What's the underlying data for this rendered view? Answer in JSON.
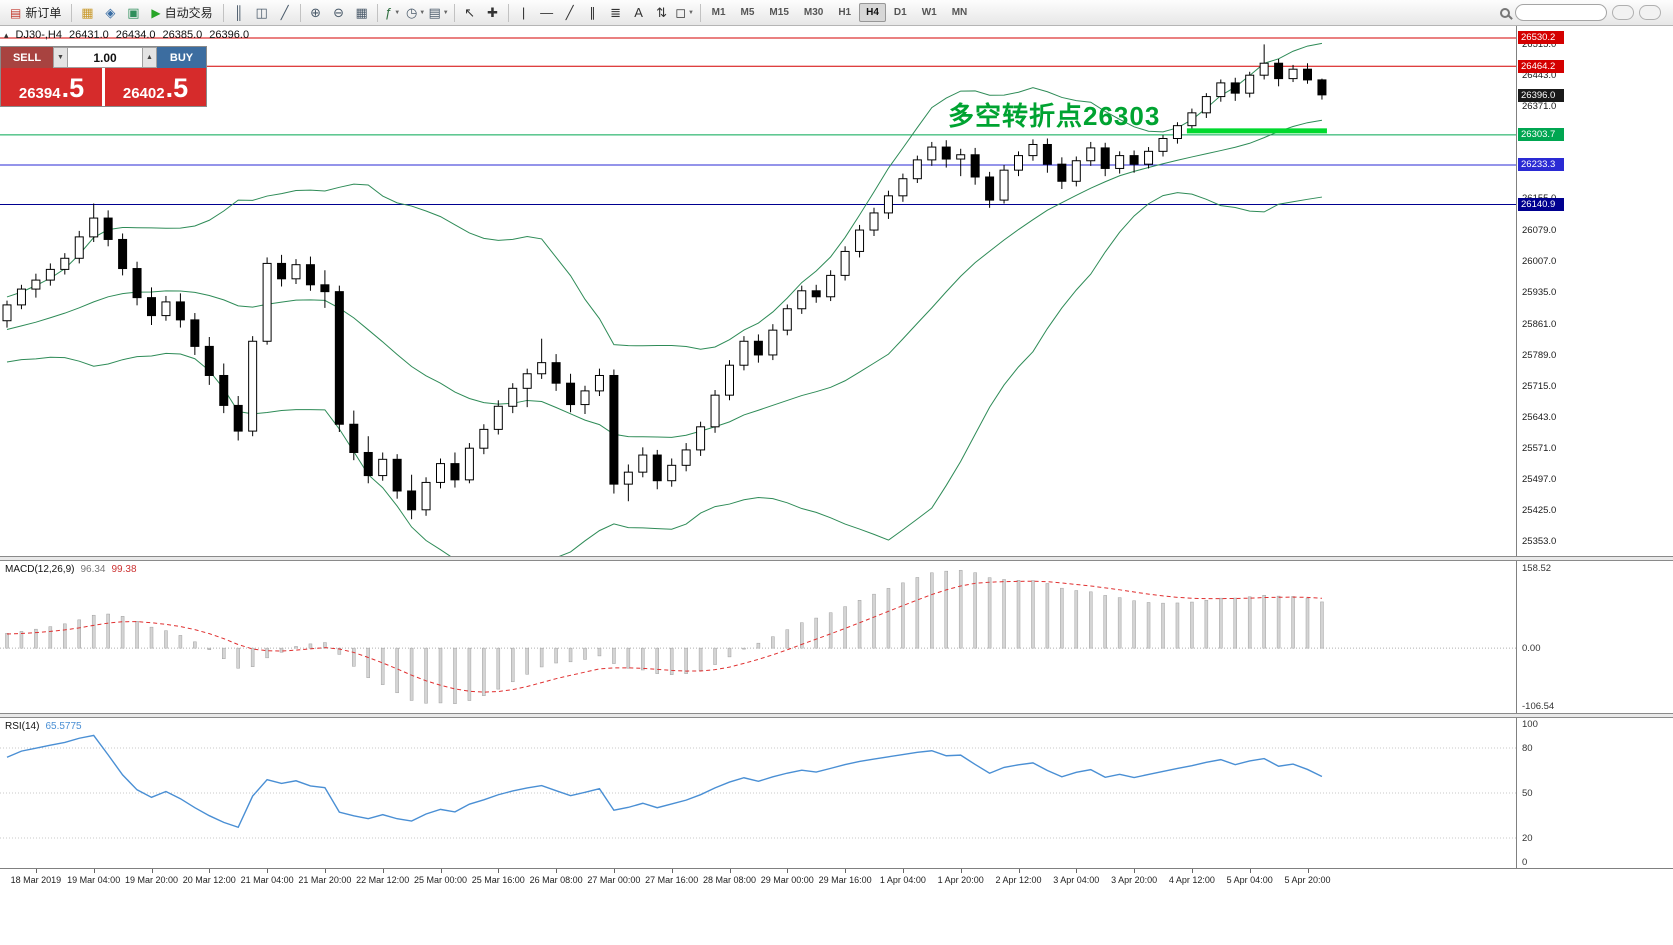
{
  "toolbar": {
    "items": [
      {
        "type": "button",
        "name": "new-order-button",
        "glyph": "▤",
        "glyph_color": "#c33a2f",
        "label": "新订单"
      },
      {
        "type": "sep"
      },
      {
        "type": "icon",
        "name": "market-watch-icon",
        "glyph": "▦",
        "glyph_color": "#c9992a"
      },
      {
        "type": "icon",
        "name": "navigator-icon",
        "glyph": "◈",
        "glyph_color": "#3a6ea5"
      },
      {
        "type": "icon",
        "name": "terminal-icon",
        "glyph": "▣",
        "glyph_color": "#2f8f5b"
      },
      {
        "type": "button",
        "name": "autotrading-button",
        "glyph": "▶",
        "glyph_color": "#27a527",
        "label": "自动交易"
      },
      {
        "type": "sep"
      },
      {
        "type": "icon",
        "name": "bar-chart-icon",
        "glyph": "║",
        "glyph_color": "#4a5a6a"
      },
      {
        "type": "icon",
        "name": "candlestick-chart-icon",
        "glyph": "◫",
        "glyph_color": "#4a5a6a"
      },
      {
        "type": "icon",
        "name": "line-chart-icon",
        "glyph": "╱",
        "glyph_color": "#4a5a6a"
      },
      {
        "type": "sep"
      },
      {
        "type": "icon",
        "name": "zoom-in-icon",
        "glyph": "⊕",
        "glyph_color": "#4a5a6a"
      },
      {
        "type": "icon",
        "name": "zoom-out-icon",
        "glyph": "⊖",
        "glyph_color": "#4a5a6a"
      },
      {
        "type": "icon",
        "name": "grid-icon",
        "glyph": "▦",
        "glyph_color": "#4a5a6a"
      },
      {
        "type": "sep"
      },
      {
        "type": "dropdown",
        "name": "indicators-button",
        "glyph": "ƒ",
        "glyph_color": "#2f6e3f"
      },
      {
        "type": "dropdown",
        "name": "periods-button",
        "glyph": "◷",
        "glyph_color": "#4a5a6a"
      },
      {
        "type": "dropdown",
        "name": "templates-button",
        "glyph": "▤",
        "glyph_color": "#4a5a6a"
      },
      {
        "type": "sep"
      },
      {
        "type": "icon",
        "name": "cursor-icon",
        "glyph": "↖",
        "glyph_color": "#333333"
      },
      {
        "type": "icon",
        "name": "crosshair-icon",
        "glyph": "✚",
        "glyph_color": "#333333"
      },
      {
        "type": "sep"
      },
      {
        "type": "icon",
        "name": "vertical-line-icon",
        "glyph": "|",
        "glyph_color": "#333333"
      },
      {
        "type": "icon",
        "name": "horizontal-line-icon",
        "glyph": "―",
        "glyph_color": "#333333"
      },
      {
        "type": "icon",
        "name": "trendline-icon",
        "glyph": "╱",
        "glyph_color": "#333333"
      },
      {
        "type": "icon",
        "name": "channel-icon",
        "glyph": "∥",
        "glyph_color": "#333333"
      },
      {
        "type": "icon",
        "name": "fibonacci-icon",
        "glyph": "≣",
        "glyph_color": "#333333"
      },
      {
        "type": "icon",
        "name": "text-icon",
        "glyph": "A",
        "glyph_color": "#333333"
      },
      {
        "type": "icon",
        "name": "arrows-icon",
        "glyph": "⇅",
        "glyph_color": "#333333"
      },
      {
        "type": "dropdown",
        "name": "shapes-button",
        "glyph": "◻",
        "glyph_color": "#333333"
      },
      {
        "type": "sep"
      }
    ],
    "dropdown_arrow_glyph": "▼",
    "timeframes": [
      "M1",
      "M5",
      "M15",
      "M30",
      "H1",
      "H4",
      "D1",
      "W1",
      "MN"
    ],
    "active_timeframe": "H4"
  },
  "chart": {
    "symbol_header": {
      "collapse_glyph": "▴",
      "symbol": "DJ30-,H4",
      "open": "26431.0",
      "high": "26434.0",
      "low": "26385.0",
      "close": "26396.0"
    },
    "trade_panel": {
      "sell_label": "SELL",
      "buy_label": "BUY",
      "volume": "1.00",
      "volume_down_glyph": "▼",
      "volume_up_glyph": "▲",
      "sell_price_main": "26394",
      "sell_price_frac": ".5",
      "buy_price_main": "26402",
      "buy_price_frac": ".5"
    },
    "annotation": {
      "text": "多空转折点26303",
      "color": "#00a331"
    },
    "levels": [
      {
        "label": "26530.2",
        "price": 26530.2,
        "color": "#d40000"
      },
      {
        "label": "26464.2",
        "price": 26464.2,
        "color": "#d40000"
      },
      {
        "label": "26303.7",
        "price": 26303.7,
        "color": "#00a651"
      },
      {
        "label": "26233.3",
        "price": 26233.3,
        "color": "#2a2ad4"
      },
      {
        "label": "26140.9",
        "price": 26140.9,
        "color": "#000090"
      }
    ],
    "current_price_marker": {
      "label": "26396.0",
      "price": 26396.0,
      "color": "#1a1a1a"
    },
    "support_zone": {
      "price": 26303.7,
      "from_index": 82,
      "to_index": 91,
      "color": "#00d92e"
    },
    "price_ticks": [
      "26515.0",
      "26443.0",
      "26371.0",
      "26299.0",
      "26227.0",
      "26155.0",
      "26079.0",
      "26007.0",
      "25935.0",
      "25861.0",
      "25789.0",
      "25715.0",
      "25643.0",
      "25571.0",
      "25497.0",
      "25425.0",
      "25353.0"
    ]
  },
  "chart_data": {
    "type": "candlestick",
    "symbol": "DJ30-",
    "timeframe": "H4",
    "price_range": {
      "max": 26557,
      "min": 25318
    },
    "warmup_closes": [
      25760,
      25775,
      25790,
      25780,
      25800,
      25815,
      25830,
      25820,
      25840,
      25855,
      25870,
      25860,
      25880,
      25870,
      25885,
      25875,
      25890,
      25880,
      25870,
      25862
    ],
    "ohlc": [
      [
        25868,
        25915,
        25852,
        25905
      ],
      [
        25905,
        25952,
        25895,
        25942
      ],
      [
        25942,
        25978,
        25922,
        25963
      ],
      [
        25963,
        26002,
        25950,
        25988
      ],
      [
        25988,
        26026,
        25976,
        26014
      ],
      [
        26014,
        26078,
        26002,
        26064
      ],
      [
        26064,
        26142,
        26052,
        26108
      ],
      [
        26108,
        26126,
        26042,
        26058
      ],
      [
        26058,
        26072,
        25974,
        25990
      ],
      [
        25990,
        26006,
        25904,
        25922
      ],
      [
        25922,
        25946,
        25858,
        25880
      ],
      [
        25880,
        25926,
        25868,
        25912
      ],
      [
        25912,
        25932,
        25852,
        25870
      ],
      [
        25870,
        25886,
        25788,
        25808
      ],
      [
        25808,
        25830,
        25718,
        25740
      ],
      [
        25740,
        25768,
        25652,
        25670
      ],
      [
        25670,
        25692,
        25588,
        25610
      ],
      [
        25610,
        25832,
        25598,
        25820
      ],
      [
        25820,
        26016,
        25812,
        26002
      ],
      [
        26002,
        26022,
        25948,
        25966
      ],
      [
        25966,
        26012,
        25954,
        25999
      ],
      [
        25999,
        26018,
        25938,
        25952
      ],
      [
        25952,
        25986,
        25898,
        25936
      ],
      [
        25936,
        25950,
        25608,
        25626
      ],
      [
        25626,
        25658,
        25542,
        25560
      ],
      [
        25560,
        25598,
        25488,
        25506
      ],
      [
        25506,
        25560,
        25494,
        25544
      ],
      [
        25544,
        25556,
        25452,
        25470
      ],
      [
        25470,
        25508,
        25404,
        25426
      ],
      [
        25426,
        25502,
        25412,
        25490
      ],
      [
        25490,
        25546,
        25476,
        25534
      ],
      [
        25534,
        25560,
        25478,
        25496
      ],
      [
        25496,
        25582,
        25488,
        25570
      ],
      [
        25570,
        25626,
        25556,
        25614
      ],
      [
        25614,
        25682,
        25602,
        25668
      ],
      [
        25668,
        25722,
        25652,
        25710
      ],
      [
        25710,
        25756,
        25666,
        25744
      ],
      [
        25744,
        25826,
        25732,
        25770
      ],
      [
        25770,
        25790,
        25704,
        25722
      ],
      [
        25722,
        25744,
        25654,
        25672
      ],
      [
        25672,
        25716,
        25650,
        25704
      ],
      [
        25704,
        25756,
        25692,
        25740
      ],
      [
        25740,
        25754,
        25464,
        25486
      ],
      [
        25486,
        25532,
        25446,
        25514
      ],
      [
        25514,
        25572,
        25502,
        25554
      ],
      [
        25554,
        25566,
        25474,
        25494
      ],
      [
        25494,
        25546,
        25480,
        25530
      ],
      [
        25530,
        25582,
        25516,
        25566
      ],
      [
        25566,
        25632,
        25552,
        25620
      ],
      [
        25620,
        25706,
        25606,
        25694
      ],
      [
        25694,
        25776,
        25682,
        25764
      ],
      [
        25764,
        25832,
        25752,
        25820
      ],
      [
        25820,
        25836,
        25770,
        25788
      ],
      [
        25788,
        25860,
        25776,
        25846
      ],
      [
        25846,
        25906,
        25834,
        25896
      ],
      [
        25896,
        25950,
        25884,
        25938
      ],
      [
        25938,
        25952,
        25910,
        25924
      ],
      [
        25924,
        25986,
        25914,
        25974
      ],
      [
        25974,
        26042,
        25962,
        26030
      ],
      [
        26030,
        26092,
        26016,
        26080
      ],
      [
        26080,
        26132,
        26066,
        26120
      ],
      [
        26120,
        26172,
        26106,
        26160
      ],
      [
        26160,
        26212,
        26146,
        26200
      ],
      [
        26200,
        26254,
        26190,
        26244
      ],
      [
        26244,
        26286,
        26230,
        26274
      ],
      [
        26274,
        26290,
        26226,
        26246
      ],
      [
        26246,
        26270,
        26206,
        26256
      ],
      [
        26256,
        26272,
        26186,
        26204
      ],
      [
        26204,
        26216,
        26132,
        26150
      ],
      [
        26150,
        26232,
        26142,
        26220
      ],
      [
        26220,
        26264,
        26206,
        26254
      ],
      [
        26254,
        26292,
        26242,
        26280
      ],
      [
        26280,
        26294,
        26214,
        26234
      ],
      [
        26234,
        26250,
        26176,
        26194
      ],
      [
        26194,
        26252,
        26182,
        26242
      ],
      [
        26242,
        26286,
        26230,
        26272
      ],
      [
        26272,
        26284,
        26206,
        26224
      ],
      [
        26224,
        26264,
        26212,
        26254
      ],
      [
        26254,
        26266,
        26214,
        26234
      ],
      [
        26234,
        26274,
        26224,
        26264
      ],
      [
        26264,
        26302,
        26252,
        26294
      ],
      [
        26294,
        26332,
        26282,
        26324
      ],
      [
        26324,
        26364,
        26312,
        26354
      ],
      [
        26354,
        26400,
        26342,
        26392
      ],
      [
        26392,
        26432,
        26380,
        26424
      ],
      [
        26424,
        26436,
        26382,
        26400
      ],
      [
        26400,
        26450,
        26390,
        26442
      ],
      [
        26442,
        26514,
        26432,
        26470
      ],
      [
        26470,
        26480,
        26416,
        26434
      ],
      [
        26434,
        26466,
        26426,
        26456
      ],
      [
        26456,
        26470,
        26422,
        26431
      ],
      [
        26431,
        26434,
        26385,
        26396
      ]
    ],
    "time_labels": [
      "18 Mar 2019",
      "19 Mar 04:00",
      "19 Mar 20:00",
      "20 Mar 12:00",
      "21 Mar 04:00",
      "21 Mar 20:00",
      "22 Mar 12:00",
      "25 Mar 00:00",
      "25 Mar 16:00",
      "26 Mar 08:00",
      "27 Mar 00:00",
      "27 Mar 16:00",
      "28 Mar 08:00",
      "29 Mar 00:00",
      "29 Mar 16:00",
      "1 Apr 04:00",
      "1 Apr 20:00",
      "2 Apr 12:00",
      "3 Apr 04:00",
      "3 Apr 20:00",
      "4 Apr 12:00",
      "5 Apr 04:00",
      "5 Apr 20:00"
    ],
    "indicators": {
      "bollinger": {
        "period": 20,
        "deviation": 2,
        "color": "#2e8b57"
      },
      "macd": {
        "label": "MACD(12,26,9)",
        "value_main": "96.34",
        "value_signal": "99.38",
        "scale_top": "158.52",
        "scale_zero": "0.00",
        "scale_bottom": "-106.54",
        "histogram_color": "#d4d4d4",
        "histogram_border": "#a0a0a0",
        "signal_color": "#e03030"
      },
      "rsi": {
        "label": "RSI(14)",
        "value": "65.5775",
        "scale": [
          100,
          80,
          50,
          20,
          0
        ],
        "levels": [
          80,
          50,
          20
        ],
        "color": "#4a8fd4"
      }
    }
  }
}
